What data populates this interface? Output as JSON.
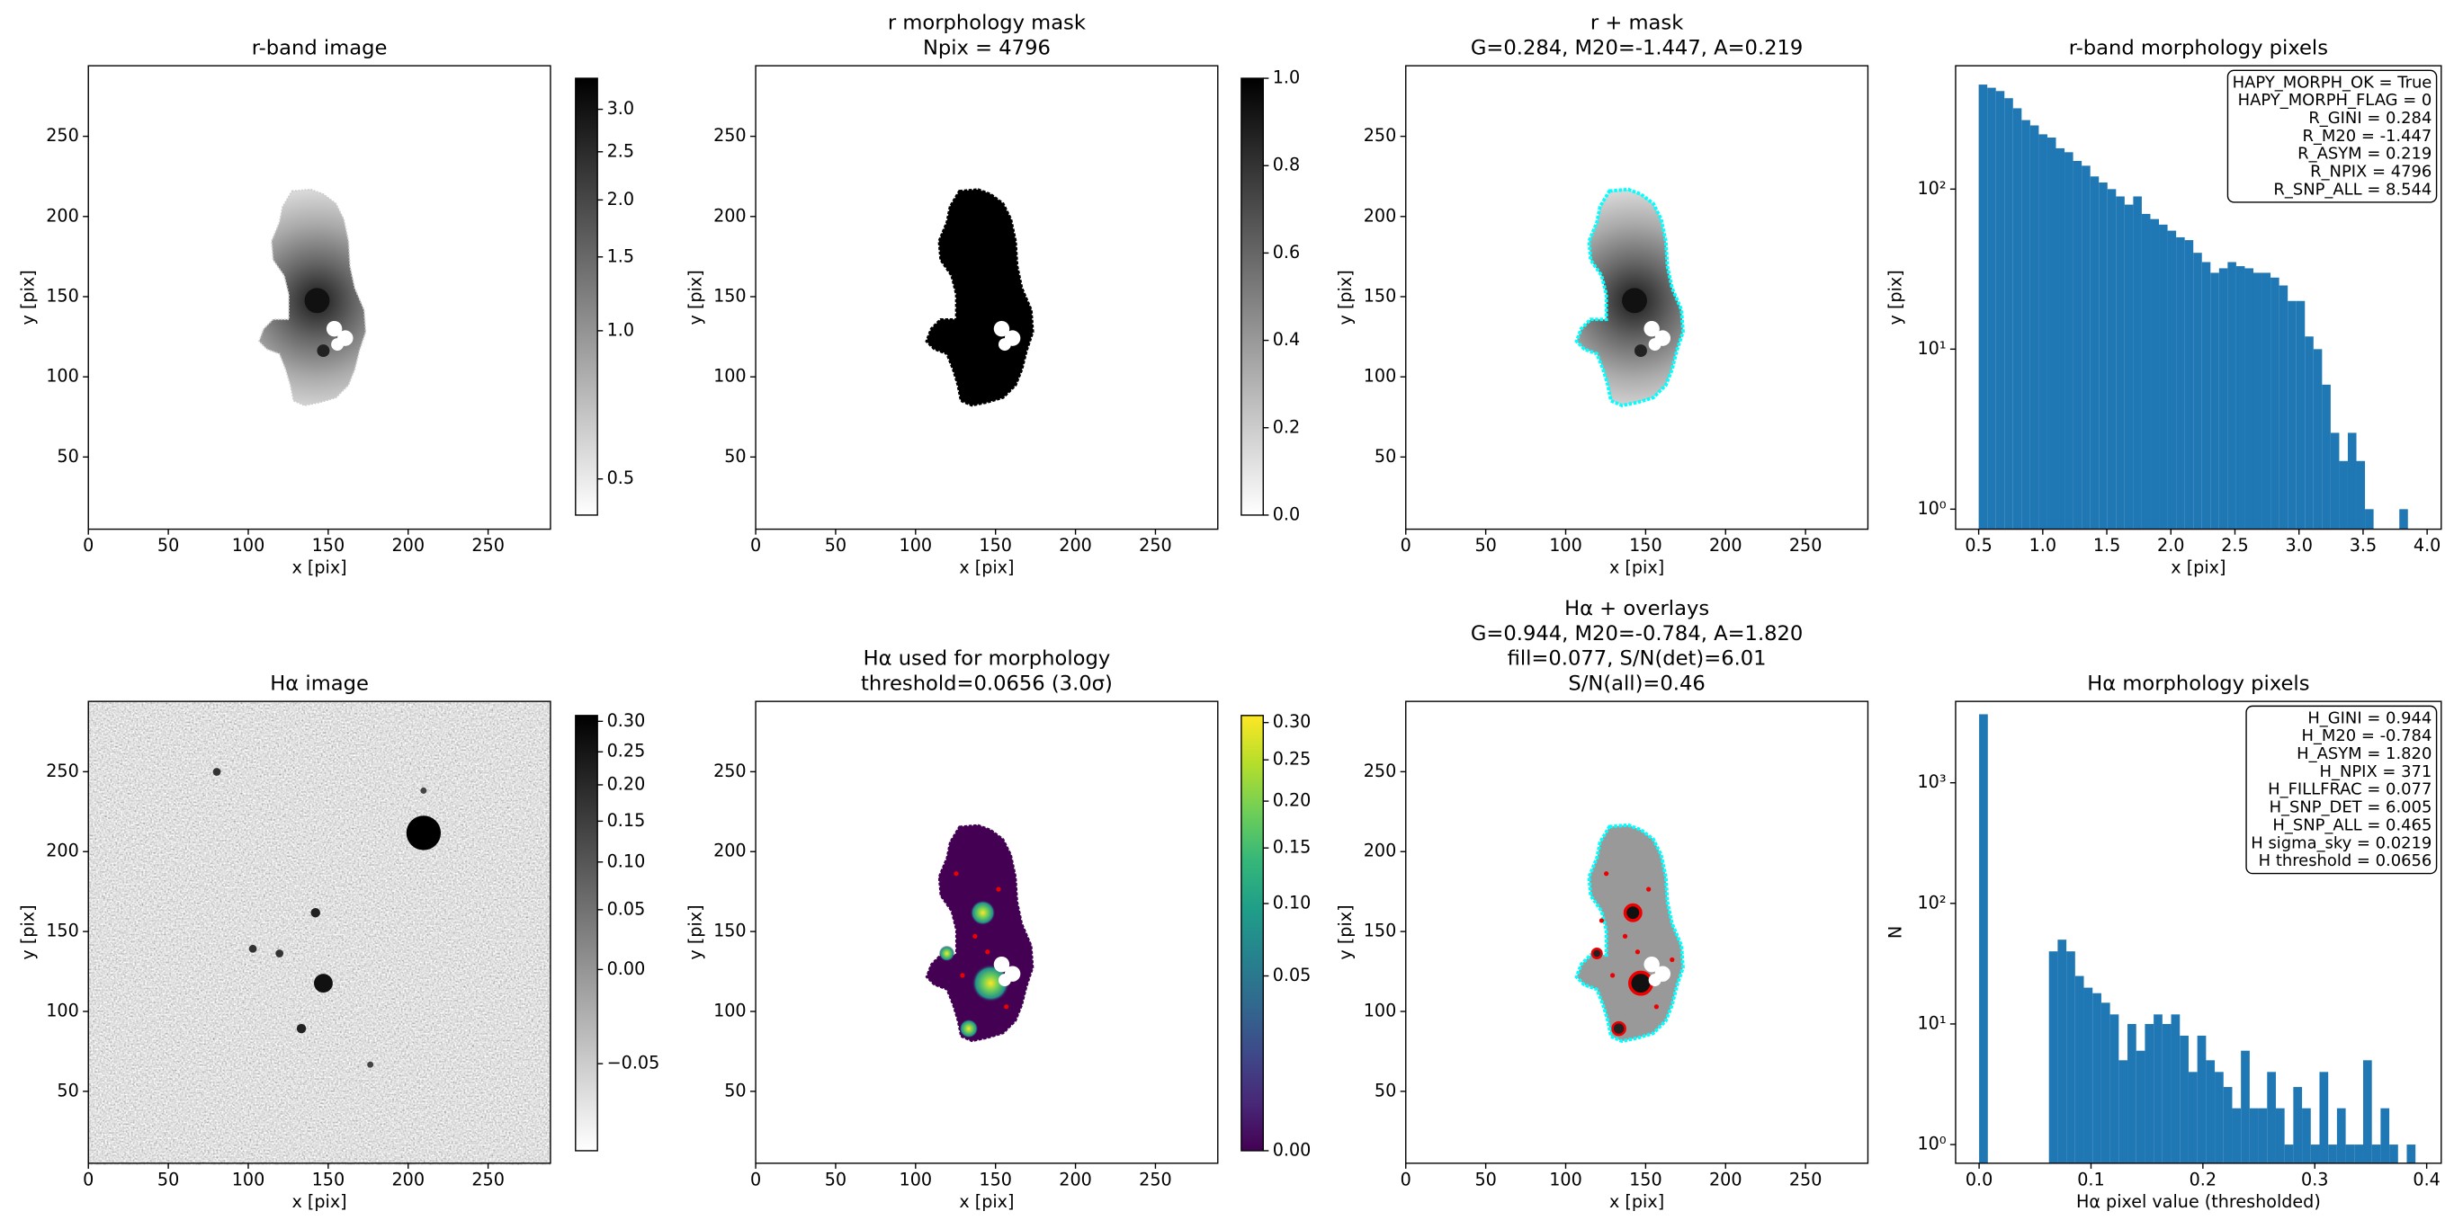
{
  "chart_data": [
    {
      "type": "image",
      "title": [
        "r-band image"
      ],
      "xlabel": "x [pix]",
      "ylabel": "y [pix]",
      "xlim": [
        0,
        289
      ],
      "ylim": [
        5,
        294
      ],
      "xticks": [
        0,
        50,
        100,
        150,
        200,
        250
      ],
      "yticks": [
        50,
        100,
        150,
        200,
        250
      ],
      "colorbar": {
        "cmap": "gray_r",
        "scale": "sqrt",
        "lim": [
          0.48,
          3.4
        ],
        "ticks": [
          0.5,
          {
            "value": 1,
            "label": "1.0"
          },
          1.5,
          {
            "value": 2,
            "label": "2.0"
          },
          2.5,
          {
            "value": 3,
            "label": "3.0"
          }
        ]
      }
    },
    {
      "type": "image",
      "title": [
        "r morphology mask",
        "Npix = 4796"
      ],
      "xlabel": "x [pix]",
      "ylabel": "y [pix]",
      "xlim": [
        0,
        289
      ],
      "ylim": [
        5,
        294
      ],
      "xticks": [
        0,
        50,
        100,
        150,
        200,
        250
      ],
      "yticks": [
        50,
        100,
        150,
        200,
        250
      ],
      "colorbar": {
        "cmap": "gray_r",
        "scale": "linear",
        "lim": [
          0,
          1
        ],
        "ticks": [
          {
            "value": 0,
            "label": "0.0"
          },
          0.2,
          0.4,
          0.6,
          0.8,
          {
            "value": 1,
            "label": "1.0"
          }
        ]
      }
    },
    {
      "type": "image",
      "title": [
        "r + mask",
        "G=0.284, M20=-1.447, A=0.219"
      ],
      "xlabel": "x [pix]",
      "ylabel": "y [pix]",
      "xlim": [
        0,
        289
      ],
      "ylim": [
        5,
        294
      ],
      "xticks": [
        0,
        50,
        100,
        150,
        200,
        250
      ],
      "yticks": [
        50,
        100,
        150,
        200,
        250
      ]
    },
    {
      "type": "histogram",
      "title": [
        "r-band morphology pixels"
      ],
      "xlabel": "x [pix]",
      "ylabel": "y [pix]",
      "color": "#1f77b4",
      "log_y": true,
      "xlim": [
        0.32,
        4.11
      ],
      "ylim": [
        0.75,
        590
      ],
      "xticks": [
        0.5,
        {
          "value": 1,
          "label": "1.0"
        },
        1.5,
        {
          "value": 2,
          "label": "2.0"
        },
        2.5,
        {
          "value": 3,
          "label": "3.0"
        },
        3.5,
        {
          "value": 4,
          "label": "4.0"
        }
      ],
      "yticks": [
        {
          "value": 1,
          "label": "10⁰"
        },
        {
          "value": 10,
          "label": "10¹"
        },
        {
          "value": 100,
          "label": "10²"
        }
      ],
      "bins": [
        0.5,
        0.567,
        0.634,
        0.701,
        0.768,
        0.835,
        0.902,
        0.969,
        1.036,
        1.103,
        1.17,
        1.237,
        1.304,
        1.371,
        1.438,
        1.505,
        1.572,
        1.639,
        1.706,
        1.773,
        1.84,
        1.907,
        1.974,
        2.041,
        2.108,
        2.175,
        2.242,
        2.309,
        2.376,
        2.443,
        2.51,
        2.577,
        2.644,
        2.711,
        2.778,
        2.845,
        2.912,
        2.979,
        3.046,
        3.113,
        3.18,
        3.247,
        3.314,
        3.381,
        3.448,
        3.515,
        3.582,
        3.649,
        3.716,
        3.783,
        3.85
      ],
      "counts": [
        450,
        430,
        410,
        370,
        320,
        270,
        250,
        220,
        210,
        180,
        170,
        150,
        140,
        120,
        110,
        100,
        90,
        80,
        90,
        70,
        65,
        60,
        55,
        50,
        48,
        40,
        35,
        30,
        32,
        35,
        33,
        32,
        30,
        30,
        28,
        25,
        20,
        20,
        12,
        10,
        6,
        3,
        2,
        3,
        2,
        1,
        0,
        0,
        0,
        1
      ],
      "annotation": [
        "HAPY_MORPH_OK = True",
        "HAPY_MORPH_FLAG = 0",
        "R_GINI = 0.284",
        "R_M20 = -1.447",
        "R_ASYM = 0.219",
        "R_NPIX = 4796",
        "R_SNP_ALL = 8.544"
      ]
    },
    {
      "type": "image",
      "title": [
        "Hα image"
      ],
      "xlabel": "x [pix]",
      "ylabel": "y [pix]",
      "xlim": [
        0,
        289
      ],
      "ylim": [
        5,
        294
      ],
      "xticks": [
        0,
        50,
        100,
        150,
        200,
        250
      ],
      "yticks": [
        50,
        100,
        150,
        200,
        250
      ],
      "colorbar": {
        "cmap": "gray_r",
        "scale": "sqrt",
        "lim": [
          -0.065,
          0.31
        ],
        "ticks": [
          {
            "value": -0.05,
            "label": "−0.05"
          },
          {
            "value": 0,
            "label": "0.00"
          },
          0.05,
          {
            "value": 0.1,
            "label": "0.10"
          },
          0.15,
          {
            "value": 0.2,
            "label": "0.20"
          },
          0.25,
          {
            "value": 0.3,
            "label": "0.30"
          }
        ]
      }
    },
    {
      "type": "image",
      "title": [
        "Hα used for morphology",
        "threshold=0.0656 (3.0σ)"
      ],
      "xlabel": "x [pix]",
      "ylabel": "y [pix]",
      "xlim": [
        0,
        289
      ],
      "ylim": [
        5,
        294
      ],
      "xticks": [
        0,
        50,
        100,
        150,
        200,
        250
      ],
      "yticks": [
        50,
        100,
        150,
        200,
        250
      ],
      "colorbar": {
        "cmap": "viridis",
        "scale": "sqrt",
        "lim": [
          0,
          0.31
        ],
        "ticks": [
          {
            "value": 0,
            "label": "0.00"
          },
          0.05,
          {
            "value": 0.1,
            "label": "0.10"
          },
          0.15,
          {
            "value": 0.2,
            "label": "0.20"
          },
          0.25,
          {
            "value": 0.3,
            "label": "0.30"
          }
        ]
      }
    },
    {
      "type": "image",
      "title": [
        "Hα + overlays",
        "G=0.944, M20=-0.784, A=1.820",
        "fill=0.077, S/N(det)=6.01",
        "S/N(all)=0.46"
      ],
      "xlabel": "x [pix]",
      "ylabel": "y [pix]",
      "xlim": [
        0,
        289
      ],
      "ylim": [
        5,
        294
      ],
      "xticks": [
        0,
        50,
        100,
        150,
        200,
        250
      ],
      "yticks": [
        50,
        100,
        150,
        200,
        250
      ]
    },
    {
      "type": "histogram",
      "title": [
        "Hα morphology pixels"
      ],
      "xlabel": "Hα pixel value (thresholded)",
      "ylabel": "N",
      "color": "#1f77b4",
      "log_y": true,
      "xlim": [
        -0.021,
        0.413
      ],
      "ylim": [
        0.7,
        4730
      ],
      "xticks": [
        {
          "value": 0,
          "label": "0.0"
        },
        0.1,
        0.2,
        0.3,
        0.4
      ],
      "yticks": [
        {
          "value": 1,
          "label": "10⁰"
        },
        {
          "value": 10,
          "label": "10¹"
        },
        {
          "value": 100,
          "label": "10²"
        },
        {
          "value": 1000,
          "label": "10³"
        }
      ],
      "bins": [
        0,
        0.0078,
        0.0156,
        0.0234,
        0.0312,
        0.039,
        0.0468,
        0.0546,
        0.0624,
        0.0702,
        0.078,
        0.0858,
        0.0936,
        0.1014,
        0.1092,
        0.117,
        0.1248,
        0.1326,
        0.1404,
        0.1482,
        0.156,
        0.1638,
        0.1716,
        0.1794,
        0.1872,
        0.195,
        0.2028,
        0.2106,
        0.2184,
        0.2262,
        0.234,
        0.2418,
        0.2496,
        0.2574,
        0.2652,
        0.273,
        0.2808,
        0.2886,
        0.2964,
        0.3042,
        0.312,
        0.3198,
        0.3276,
        0.3354,
        0.3432,
        0.351,
        0.3588,
        0.3666,
        0.3744,
        0.3822,
        0.39
      ],
      "counts": [
        3700,
        0,
        0,
        0,
        0,
        0,
        0,
        0,
        40,
        50,
        40,
        25,
        20,
        18,
        15,
        12,
        5,
        10,
        6,
        10,
        12,
        10,
        12,
        8,
        4,
        8,
        5,
        4,
        3,
        2,
        6,
        2,
        2,
        4,
        2,
        1,
        3,
        2,
        1,
        4,
        1,
        2,
        1,
        1,
        5,
        1,
        2,
        1,
        0,
        1
      ],
      "annotation": [
        "H_GINI = 0.944",
        "H_M20 = -0.784",
        "H_ASYM = 1.820",
        "H_NPIX = 371",
        "H_FILLFRAC = 0.077",
        "H_SNP_DET = 6.005",
        "H_SNP_ALL = 0.465",
        "H sigma_sky = 0.0219",
        "H threshold = 0.0656"
      ]
    }
  ]
}
